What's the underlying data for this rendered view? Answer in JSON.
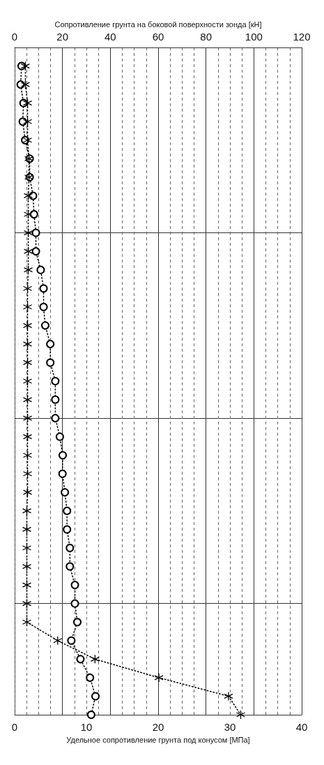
{
  "chart_data": {
    "type": "line",
    "orientation": "horizontal",
    "xlabel": "Удельное сопротивление грунта под конусом [МПа]",
    "x2label": "Сопротивление грунта на боковой поверхности зонда [кН]",
    "categories": [
      null,
      null,
      null,
      null,
      null,
      null,
      null,
      null,
      null,
      null,
      null,
      null,
      null,
      null,
      null,
      null,
      null,
      null,
      null,
      null,
      null,
      null,
      null,
      null,
      null,
      null,
      null,
      null,
      null,
      null,
      null,
      null,
      null,
      null,
      null,
      null,
      null
    ],
    "xlim": [
      0,
      40
    ],
    "xticks": [
      0,
      10,
      20,
      30,
      40
    ],
    "x2lim": [
      0,
      120
    ],
    "x2ticks": [
      0,
      20,
      40,
      60,
      80,
      100,
      120
    ],
    "tick_labels": "x",
    "grid": true,
    "line_style": "dotted",
    "series": [
      {
        "color": "#000000",
        "marker": "circle",
        "axis": "x2",
        "values": [
          null,
          2.9,
          2.5,
          3.7,
          3.4,
          4.4,
          6.3,
          6.3,
          7.7,
          8.1,
          8.9,
          8.9,
          10.9,
          12.1,
          12.1,
          12.8,
          14.9,
          14.9,
          17,
          17,
          17,
          18.9,
          20.1,
          20,
          21,
          21.9,
          21.9,
          23.1,
          23.1,
          25.2,
          25.2,
          26.2,
          23.7,
          27.5,
          31.5,
          33.8,
          32
        ]
      },
      {
        "color": "#000000",
        "marker": "cross",
        "values": [
          null,
          1.5,
          1.5,
          1.8,
          1.8,
          1.8,
          2.0,
          2.0,
          1.9,
          1.9,
          1.9,
          1.9,
          1.9,
          1.8,
          1.8,
          1.8,
          1.8,
          1.8,
          1.8,
          1.8,
          1.8,
          1.8,
          1.8,
          1.8,
          1.8,
          1.7,
          1.7,
          1.7,
          1.7,
          1.7,
          1.7,
          1.7,
          6.0,
          11.2,
          20.1,
          29.8,
          31.5
        ]
      }
    ]
  }
}
